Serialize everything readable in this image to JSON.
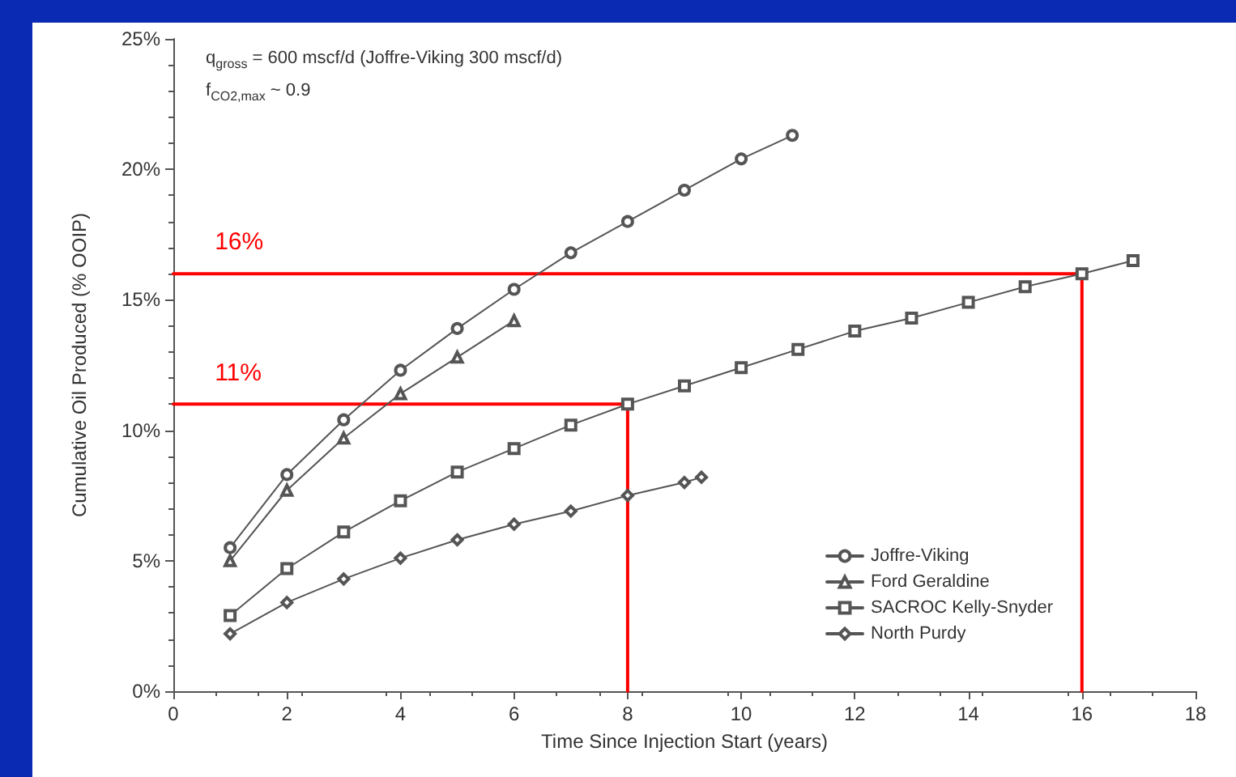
{
  "chart_data": {
    "type": "line",
    "xlabel": "Time Since Injection Start (years)",
    "ylabel": "Cumulative Oil Produced (% OOIP)",
    "annotations": [
      "q$_{gross}$ = 600 mscf/d (Joffre-Viking 300 mscf/d)",
      "f$_{CO2,max}$ ~ 0.9",
      {
        "text": "16%",
        "x": 1.3,
        "y": 16
      },
      {
        "text": "11%",
        "x": 1.3,
        "y": 11
      }
    ],
    "series": [
      {
        "name": "Joffre-Viking",
        "color": "#555555",
        "marker": "circle",
        "x": [
          1,
          2,
          3,
          4,
          5,
          6,
          7,
          8,
          9,
          10,
          10.9
        ],
        "values": [
          5.5,
          8.3,
          10.4,
          12.3,
          13.9,
          15.4,
          16.8,
          18.0,
          19.2,
          20.4,
          21.3
        ]
      },
      {
        "name": "Ford Geraldine",
        "color": "#555555",
        "marker": "triangle",
        "x": [
          1,
          2,
          3,
          4,
          5,
          6
        ],
        "values": [
          5.0,
          7.7,
          9.7,
          11.4,
          12.8,
          14.2
        ]
      },
      {
        "name": "SACROC Kelly-Snyder",
        "color": "#555555",
        "marker": "square",
        "x": [
          1,
          2,
          3,
          4,
          5,
          6,
          7,
          8,
          9,
          10,
          11,
          12,
          13,
          14,
          15,
          16,
          16.9
        ],
        "values": [
          2.9,
          4.7,
          6.1,
          7.3,
          8.4,
          9.3,
          10.2,
          11.0,
          11.7,
          12.4,
          13.1,
          13.8,
          14.3,
          14.9,
          15.5,
          16.0,
          16.5
        ]
      },
      {
        "name": "North Purdy",
        "color": "#555555",
        "marker": "diamond",
        "x": [
          1,
          2,
          3,
          4,
          5,
          6,
          7,
          8,
          9,
          9.3
        ],
        "values": [
          2.2,
          3.4,
          4.3,
          5.1,
          5.8,
          6.4,
          6.9,
          7.5,
          8.0,
          8.2
        ]
      },
      {
        "type": "line",
        "color": "#ff0000",
        "marker": "none",
        "x": [
          0,
          16,
          16
        ],
        "values": [
          16,
          16,
          0
        ]
      },
      {
        "type": "line",
        "color": "#ff0000",
        "marker": "none",
        "x": [
          0,
          8,
          8
        ],
        "values": [
          11,
          11,
          0
        ]
      }
    ],
    "xlim": [
      0,
      18
    ],
    "xticks": [
      0,
      2,
      4,
      6,
      8,
      10,
      12,
      14,
      16,
      18
    ],
    "ylim": [
      0,
      25
    ],
    "yticks": [
      {
        "value": 0,
        "label": "0%"
      },
      {
        "value": 5,
        "label": "5%"
      },
      {
        "value": 10,
        "label": "10%"
      },
      {
        "value": 15,
        "label": "15%"
      },
      {
        "value": 20,
        "label": "20%"
      },
      {
        "value": 25,
        "label": "25%"
      }
    ],
    "grid": false,
    "legend": "bottom right"
  }
}
